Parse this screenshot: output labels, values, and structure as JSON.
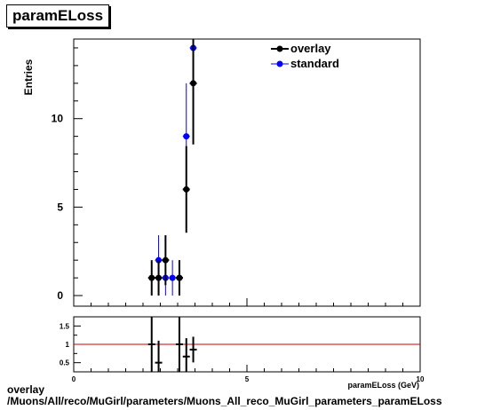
{
  "title": "paramELoss",
  "footer_line1": "overlay",
  "footer_line2": "/Muons/All/reco/MuGirl/parameters/Muons_All_reco_MuGirl_parameters_paramELoss",
  "chart_data": [
    {
      "type": "scatter",
      "title": "paramELoss",
      "ylabel": "Entries",
      "xlim": [
        0,
        10
      ],
      "ylim": [
        -0.6,
        14.5
      ],
      "yticks": [
        0,
        5,
        10
      ],
      "legend_position": "top-right",
      "series": [
        {
          "name": "overlay",
          "color": "#000000",
          "points": [
            {
              "x": 2.25,
              "y": 1,
              "err": 1
            },
            {
              "x": 2.45,
              "y": 1,
              "err": 1
            },
            {
              "x": 2.65,
              "y": 2,
              "err": 1.41
            },
            {
              "x": 3.05,
              "y": 1,
              "err": 1
            },
            {
              "x": 3.25,
              "y": 6,
              "err": 2.45
            },
            {
              "x": 3.45,
              "y": 12,
              "err": 3.46
            }
          ]
        },
        {
          "name": "standard",
          "color": "#0000ff",
          "points": [
            {
              "x": 2.45,
              "y": 2,
              "err": 1.41
            },
            {
              "x": 2.65,
              "y": 1,
              "err": 1
            },
            {
              "x": 2.85,
              "y": 1,
              "err": 1
            },
            {
              "x": 3.05,
              "y": 1,
              "err": 1
            },
            {
              "x": 3.25,
              "y": 9,
              "err": 3
            },
            {
              "x": 3.45,
              "y": 14,
              "err": 3.74
            }
          ]
        }
      ]
    },
    {
      "type": "scatter",
      "xlabel": "paramELoss (GeV)",
      "xlim": [
        0,
        10
      ],
      "ylim": [
        0.25,
        1.75
      ],
      "xticks": [
        0,
        5,
        10
      ],
      "yticks": [
        0.5,
        1,
        1.5
      ],
      "reference_line": 1,
      "reference_color": "#cc0000",
      "points": [
        {
          "x": 2.25,
          "y": 1.0,
          "err": 1.5
        },
        {
          "x": 2.45,
          "y": 0.5,
          "err": 0.6
        },
        {
          "x": 3.05,
          "y": 1.0,
          "err": 1.5
        },
        {
          "x": 3.25,
          "y": 0.667,
          "err": 0.5
        },
        {
          "x": 3.45,
          "y": 0.857,
          "err": 0.35
        }
      ]
    }
  ]
}
